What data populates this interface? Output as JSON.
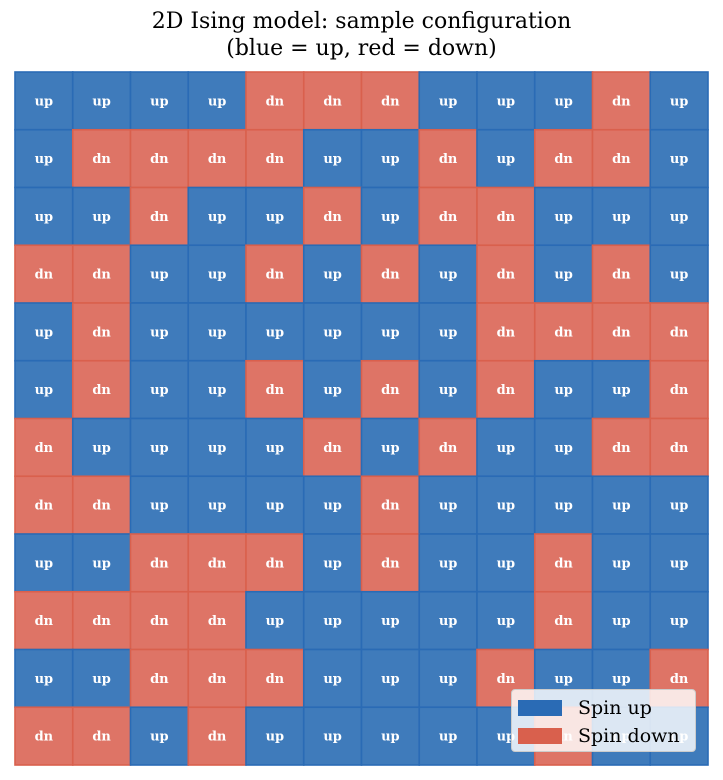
{
  "chart_data": {
    "type": "heatmap",
    "title": "2D Ising model: sample configuration",
    "subtitle": "(blue = up, red = down)",
    "rows": 12,
    "cols": 12,
    "spin_labels": {
      "up": "up",
      "down": "dn"
    },
    "grid": [
      [
        1,
        1,
        1,
        1,
        -1,
        -1,
        -1,
        1,
        1,
        1,
        -1,
        1
      ],
      [
        1,
        -1,
        -1,
        -1,
        -1,
        1,
        1,
        -1,
        1,
        -1,
        -1,
        1
      ],
      [
        1,
        1,
        -1,
        1,
        1,
        -1,
        1,
        -1,
        -1,
        1,
        1,
        1
      ],
      [
        -1,
        -1,
        1,
        1,
        -1,
        1,
        -1,
        1,
        -1,
        1,
        -1,
        1
      ],
      [
        1,
        -1,
        1,
        1,
        1,
        1,
        1,
        1,
        -1,
        -1,
        -1,
        -1
      ],
      [
        1,
        -1,
        1,
        1,
        -1,
        1,
        -1,
        1,
        -1,
        1,
        1,
        -1
      ],
      [
        -1,
        1,
        1,
        1,
        1,
        -1,
        1,
        -1,
        1,
        1,
        -1,
        -1
      ],
      [
        -1,
        -1,
        1,
        1,
        1,
        1,
        -1,
        1,
        1,
        1,
        1,
        1
      ],
      [
        1,
        1,
        -1,
        -1,
        -1,
        1,
        -1,
        1,
        1,
        -1,
        1,
        1
      ],
      [
        -1,
        -1,
        -1,
        -1,
        1,
        1,
        1,
        1,
        1,
        -1,
        1,
        1
      ],
      [
        1,
        1,
        -1,
        -1,
        -1,
        1,
        1,
        1,
        -1,
        1,
        1,
        -1
      ],
      [
        -1,
        -1,
        1,
        -1,
        1,
        1,
        1,
        1,
        1,
        -1,
        1,
        1
      ]
    ],
    "legend": [
      {
        "label": "Spin up",
        "color": "#2a6bb5"
      },
      {
        "label": "Spin down",
        "color": "#d9604d"
      }
    ],
    "legend_position": "lower-right"
  },
  "colors": {
    "up_fill": "#3f7bbb",
    "down_fill": "#de7466",
    "up_edge": "#2a6bb5",
    "down_edge": "#d9604d",
    "cell_text": "#ffffff"
  }
}
